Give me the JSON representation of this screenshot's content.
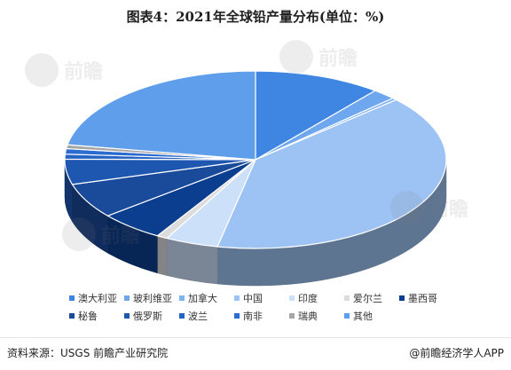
{
  "title": "图表4：2021年全球铅产量分布(单位：%)",
  "source": "资料来源：USGS 前瞻产业研究院",
  "brand": "@前瞻经济学人APP",
  "watermark": "前瞻",
  "chart_data": {
    "type": "pie",
    "title": "图表4：2021年全球铅产量分布(单位：%)",
    "unit": "%",
    "legend_placement": "bottom",
    "slices": [
      {
        "name": "澳大利亚",
        "value": 10.8,
        "color": "#3F86E3"
      },
      {
        "name": "玻利维亚",
        "value": 2.0,
        "color": "#6FA7EE"
      },
      {
        "name": "加拿大",
        "value": 0.4,
        "color": "#7FB2EF"
      },
      {
        "name": "中国",
        "value": 40.0,
        "color": "#9DC3F4"
      },
      {
        "name": "印度",
        "value": 4.5,
        "color": "#CCE0FA"
      },
      {
        "name": "爱尔兰",
        "value": 0.9,
        "color": "#DCDCDC"
      },
      {
        "name": "墨西哥",
        "value": 5.5,
        "color": "#0B3E8E"
      },
      {
        "name": "秘鲁",
        "value": 6.4,
        "color": "#1A4A9A"
      },
      {
        "name": "俄罗斯",
        "value": 4.6,
        "color": "#1E57B0"
      },
      {
        "name": "波兰",
        "value": 0.9,
        "color": "#2463C3"
      },
      {
        "name": "南非",
        "value": 1.0,
        "color": "#2C6BD0"
      },
      {
        "name": "瑞典",
        "value": 0.7,
        "color": "#A6A6A6"
      },
      {
        "name": "其他",
        "value": 22.3,
        "color": "#5E9EEA"
      }
    ]
  }
}
